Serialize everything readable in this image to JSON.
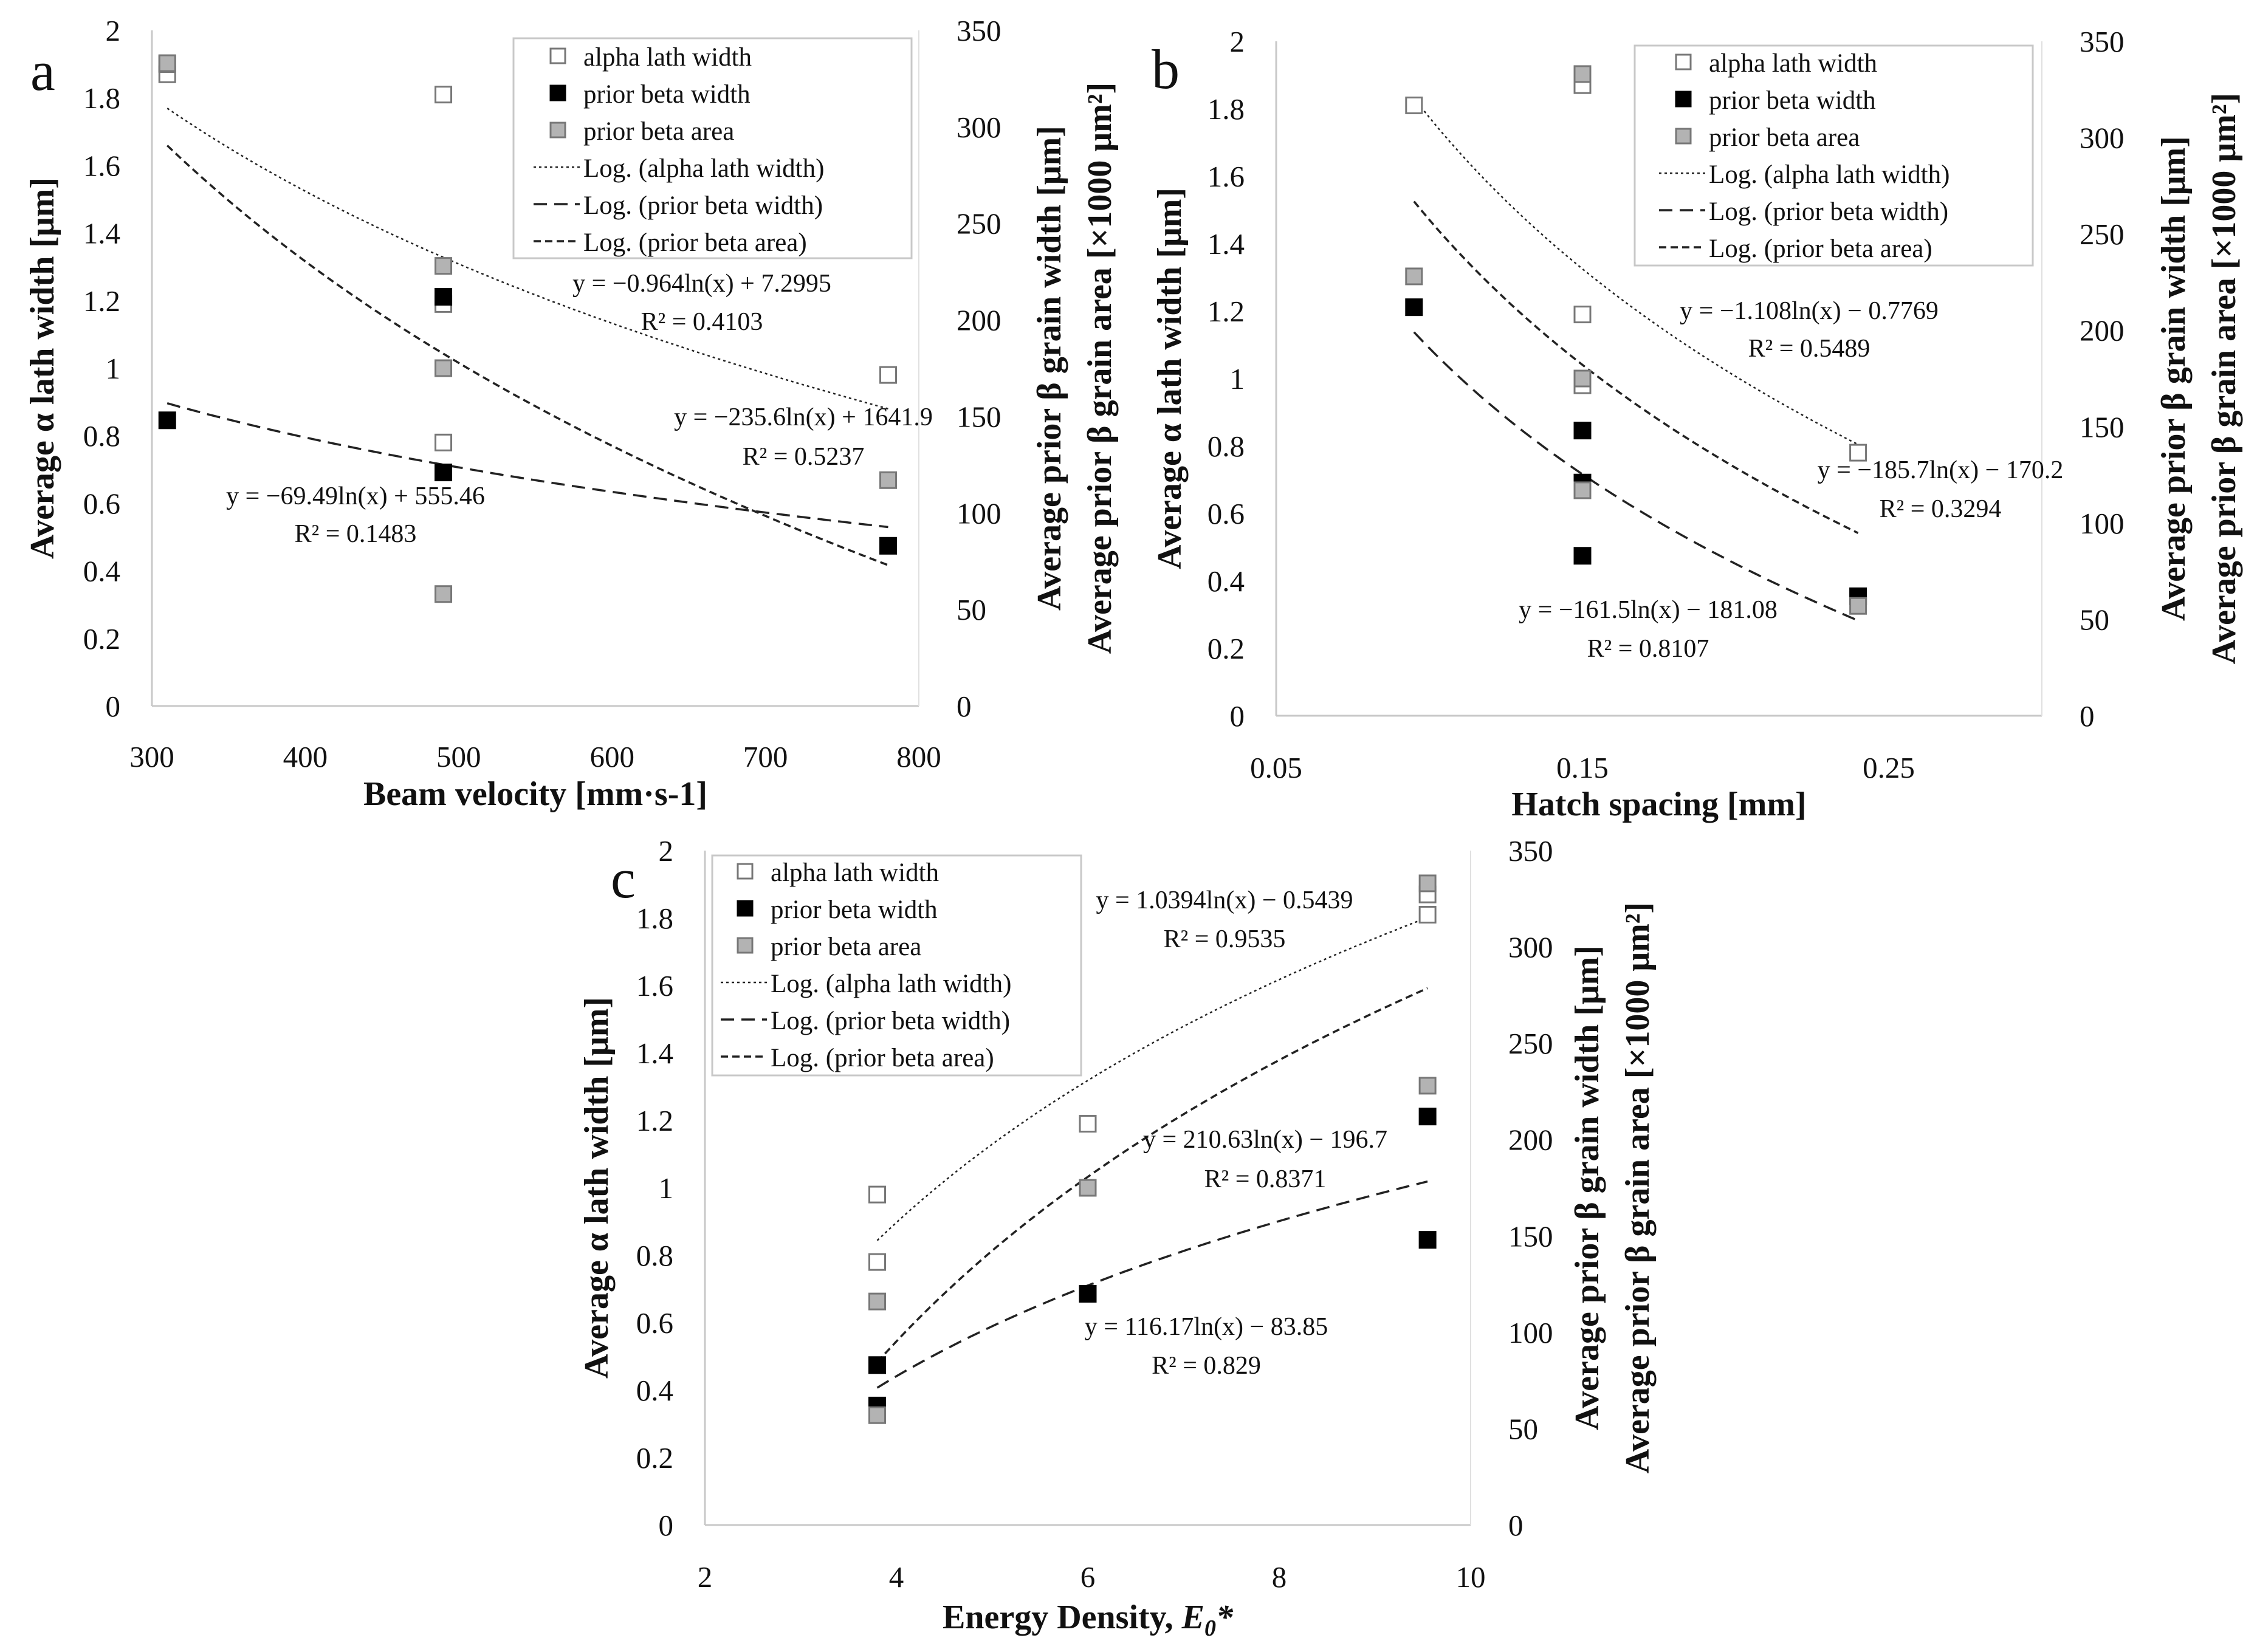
{
  "figure": {
    "colors": {
      "axis": "#222222",
      "white": "#ffffff",
      "grey": "#b3b3b3",
      "black": "#000000"
    }
  },
  "chart_data": [
    {
      "type": "scatter",
      "panel_label": "a",
      "xlabel": "Beam velocity [mm·s-1]",
      "ylabel": "Average α lath width [μm]",
      "y2label_line1": "Average prior β grain width [μm]",
      "y2label_line2": "Average prior β grain area [×1000 μm²]",
      "xlim": [
        300,
        800
      ],
      "ylim": [
        0,
        2
      ],
      "y2lim": [
        0,
        350
      ],
      "x_ticks": [
        "300",
        "400",
        "500",
        "600",
        "700",
        "800"
      ],
      "y_ticks": [
        "0",
        "0.2",
        "0.4",
        "0.6",
        "0.8",
        "1",
        "1.2",
        "1.4",
        "1.6",
        "1.8",
        "2"
      ],
      "y2_ticks": [
        "0",
        "50",
        "100",
        "150",
        "200",
        "250",
        "300",
        "350"
      ],
      "legend": [
        "alpha lath width",
        "prior beta width",
        "prior beta area",
        "Log. (alpha lath width)",
        "Log. (prior beta width)",
        "Log. (prior beta area)"
      ],
      "series": [
        {
          "name": "alpha lath width",
          "axis": "y",
          "marker": "white",
          "x": [
            310,
            310,
            490,
            490,
            490,
            780
          ],
          "y": [
            1.87,
            1.9,
            1.81,
            1.19,
            0.78,
            0.98
          ]
        },
        {
          "name": "prior beta width",
          "axis": "y2",
          "marker": "black",
          "x": [
            310,
            490,
            490,
            780
          ],
          "y": [
            148,
            212,
            121,
            83
          ]
        },
        {
          "name": "prior beta area",
          "axis": "y2",
          "marker": "grey",
          "x": [
            310,
            490,
            490,
            490,
            780
          ],
          "y": [
            333,
            228,
            175,
            58,
            117
          ]
        }
      ],
      "trendlines": [
        {
          "name": "Log. (alpha lath width)",
          "axis": "y",
          "style": "dotted",
          "a": -0.964,
          "b": 7.2995,
          "x_range": [
            310,
            780
          ]
        },
        {
          "name": "Log. (prior beta width)",
          "axis": "y2",
          "style": "dashed",
          "a": -69.49,
          "b": 555.46,
          "x_range": [
            310,
            780
          ]
        },
        {
          "name": "Log. (prior beta area)",
          "axis": "y2",
          "style": "short-dashed",
          "a": -235.6,
          "b": 1641.9,
          "x_range": [
            310,
            780
          ]
        }
      ],
      "equations": [
        {
          "eq": "y = −0.964ln(x) + 7.2995",
          "r2": "R² = 0.4103"
        },
        {
          "eq": "y = −235.6ln(x) + 1641.9",
          "r2": "R² = 0.5237"
        },
        {
          "eq": "y = −69.49ln(x) + 555.46",
          "r2": "R² = 0.1483"
        }
      ]
    },
    {
      "type": "scatter",
      "panel_label": "b",
      "xlabel": "Hatch spacing [mm]",
      "ylabel": "Average α lath width [μm]",
      "y2label_line1": "Average prior β grain width [μm]",
      "y2label_line2": "Average prior β grain area [×1000 μm²]",
      "xlim": [
        0.05,
        0.3
      ],
      "ylim": [
        0,
        2
      ],
      "y2lim": [
        0,
        350
      ],
      "x_ticks": [
        "0.05",
        "0.15",
        "0.25"
      ],
      "y_ticks": [
        "0",
        "0.2",
        "0.4",
        "0.6",
        "0.8",
        "1",
        "1.2",
        "1.4",
        "1.6",
        "1.8",
        "2"
      ],
      "y2_ticks": [
        "0",
        "50",
        "100",
        "150",
        "200",
        "250",
        "300",
        "350"
      ],
      "legend": [
        "alpha lath width",
        "prior beta width",
        "prior beta area",
        "Log. (alpha lath width)",
        "Log. (prior beta width)",
        "Log. (prior beta area)"
      ],
      "series": [
        {
          "name": "alpha lath width",
          "axis": "y",
          "marker": "white",
          "x": [
            0.095,
            0.15,
            0.15,
            0.15,
            0.24
          ],
          "y": [
            1.81,
            1.87,
            1.19,
            0.98,
            0.78
          ]
        },
        {
          "name": "prior beta width",
          "axis": "y2",
          "marker": "black",
          "x": [
            0.095,
            0.15,
            0.15,
            0.15,
            0.24
          ],
          "y": [
            212,
            148,
            121,
            83,
            62
          ]
        },
        {
          "name": "prior beta area",
          "axis": "y2",
          "marker": "grey",
          "x": [
            0.095,
            0.15,
            0.15,
            0.15,
            0.24
          ],
          "y": [
            228,
            333,
            175,
            117,
            57
          ]
        }
      ],
      "trendlines": [
        {
          "name": "Log. (alpha lath width)",
          "axis": "y",
          "style": "dotted",
          "a": -1.108,
          "b": -0.7769,
          "x_range": [
            0.095,
            0.24
          ]
        },
        {
          "name": "Log. (prior beta width)",
          "axis": "y2",
          "style": "dashed",
          "a": -161.5,
          "b": -181.08,
          "x_range": [
            0.095,
            0.24
          ]
        },
        {
          "name": "Log. (prior beta area)",
          "axis": "y2",
          "style": "short-dashed",
          "a": -185.7,
          "b": -170.2,
          "x_range": [
            0.095,
            0.24
          ]
        }
      ],
      "equations": [
        {
          "eq": "y = −1.108ln(x) − 0.7769",
          "r2": "R² = 0.5489"
        },
        {
          "eq": "y = −185.7ln(x) − 170.2",
          "r2": "R² = 0.3294"
        },
        {
          "eq": "y = −161.5ln(x) − 181.08",
          "r2": "R² = 0.8107"
        }
      ]
    },
    {
      "type": "scatter",
      "panel_label": "c",
      "xlabel_main": "Energy Density, ",
      "xlabel_sym": "E",
      "xlabel_sub": "0",
      "xlabel_star": "*",
      "ylabel": "Average α lath width [μm]",
      "y2label_line1": "Average prior β grain width [μm]",
      "y2label_line2": "Average prior β grain area [×1000 μm²]",
      "xlim": [
        2,
        10
      ],
      "ylim": [
        0,
        2
      ],
      "y2lim": [
        0,
        350
      ],
      "x_ticks": [
        "2",
        "4",
        "6",
        "8",
        "10"
      ],
      "y_ticks": [
        "0",
        "0.2",
        "0.4",
        "0.6",
        "0.8",
        "1",
        "1.2",
        "1.4",
        "1.6",
        "1.8",
        "2"
      ],
      "y2_ticks": [
        "0",
        "50",
        "100",
        "150",
        "200",
        "250",
        "300",
        "350"
      ],
      "legend": [
        "alpha lath width",
        "prior beta width",
        "prior beta area",
        "Log. (alpha lath width)",
        "Log. (prior beta width)",
        "Log. (prior beta area)"
      ],
      "series": [
        {
          "name": "alpha lath width",
          "axis": "y",
          "marker": "white",
          "x": [
            3.8,
            3.8,
            6.0,
            9.55,
            9.55
          ],
          "y": [
            0.98,
            0.78,
            1.19,
            1.81,
            1.87
          ]
        },
        {
          "name": "prior beta width",
          "axis": "y2",
          "marker": "black",
          "x": [
            3.8,
            3.8,
            6.0,
            9.55,
            9.55
          ],
          "y": [
            83,
            62,
            120,
            212,
            148
          ]
        },
        {
          "name": "prior beta area",
          "axis": "y2",
          "marker": "grey",
          "x": [
            3.8,
            3.8,
            6.0,
            9.55,
            9.55
          ],
          "y": [
            116,
            57,
            175,
            228,
            333
          ]
        }
      ],
      "trendlines": [
        {
          "name": "Log. (alpha lath width)",
          "axis": "y",
          "style": "dotted",
          "a": 1.0394,
          "b": -0.5439,
          "x_range": [
            3.8,
            9.55
          ]
        },
        {
          "name": "Log. (prior beta width)",
          "axis": "y2",
          "style": "dashed",
          "a": 116.17,
          "b": -83.85,
          "x_range": [
            3.8,
            9.55
          ]
        },
        {
          "name": "Log. (prior beta area)",
          "axis": "y2",
          "style": "short-dashed",
          "a": 210.63,
          "b": -196.7,
          "x_range": [
            3.8,
            9.55
          ]
        }
      ],
      "equations": [
        {
          "eq": "y = 1.0394ln(x) − 0.5439",
          "r2": "R² = 0.9535"
        },
        {
          "eq": "y = 210.63ln(x) − 196.7",
          "r2": "R² = 0.8371"
        },
        {
          "eq": "y = 116.17ln(x) − 83.85",
          "r2": "R² = 0.829"
        }
      ]
    }
  ]
}
